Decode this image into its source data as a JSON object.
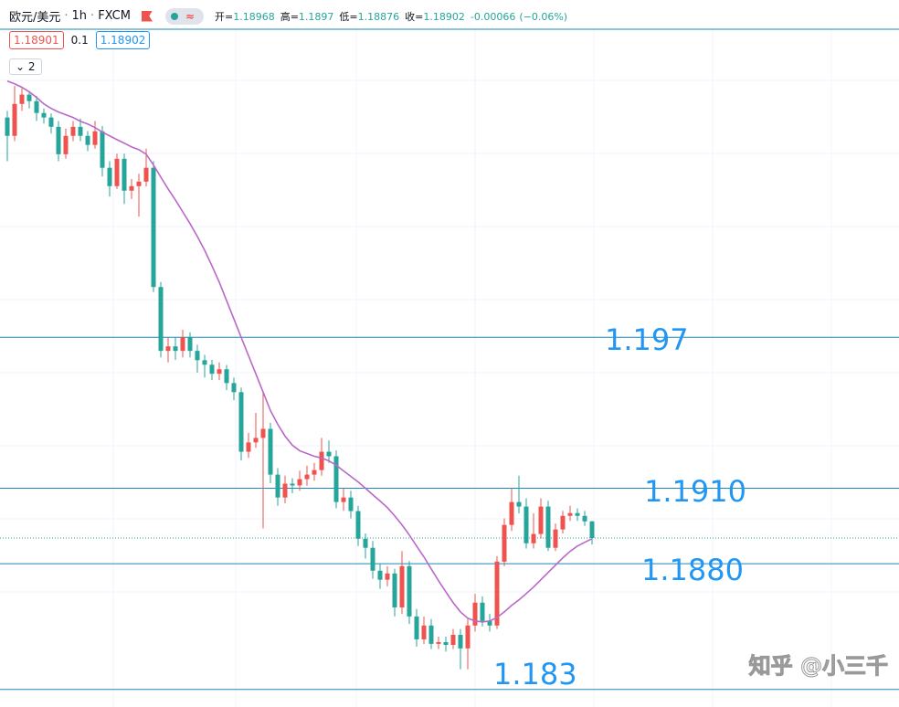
{
  "chart_data": {
    "type": "candlestick",
    "title": "欧元/美元",
    "interval": "1h",
    "source": "FXCM",
    "legend": [
      {
        "label": "开=",
        "value": 1.18968
      },
      {
        "label": "高=",
        "value": 1.1897
      },
      {
        "label": "低=",
        "value": 1.18876
      },
      {
        "label": "收=",
        "value": 1.18902
      }
    ],
    "change": {
      "value": -0.00066,
      "percent": "(−0.06%)"
    },
    "bid": "1.18901",
    "spread": "0.1",
    "ask": "1.18902",
    "indicator_count": "2",
    "up_color": "#ef5350",
    "down_color": "#26a69a",
    "ylim": [
      1.1823,
      1.20925
    ],
    "grid": true,
    "open": [
      1.20574,
      1.20501,
      1.20628,
      1.20665,
      1.20639,
      1.20592,
      1.20574,
      1.20537,
      1.20428,
      1.20501,
      1.20537,
      1.20501,
      1.20465,
      1.20519,
      1.20374,
      1.20301,
      1.2041,
      1.20283,
      1.20301,
      1.20319,
      1.20374,
      1.199,
      1.19646,
      1.19664,
      1.19646,
      1.197,
      1.19646,
      1.19609,
      1.19591,
      1.19555,
      1.19573,
      1.19518,
      1.19482,
      1.19245,
      1.19282,
      1.193,
      1.19336,
      1.19154,
      1.19063,
      1.19118,
      1.19111,
      1.19136,
      1.19154,
      1.19172,
      1.19245,
      1.19227,
      1.19045,
      1.19063,
      1.19009,
      1.18899,
      1.18863,
      1.18772,
      1.18736,
      1.18761,
      1.18626,
      1.1879,
      1.1859,
      1.18499,
      1.18554,
      1.18481,
      1.18488,
      1.18477,
      1.18517,
      1.18463,
      1.18554,
      1.18645,
      1.18572,
      1.18554,
      1.18808,
      1.18954,
      1.19045,
      1.19027,
      1.18881,
      1.18918,
      1.19027,
      1.18863,
      1.18936,
      1.1899,
      1.19001,
      1.1899,
      1.18968
    ],
    "high": [
      1.206,
      1.207,
      1.2069,
      1.2068,
      1.2066,
      1.2061,
      1.2059,
      1.2056,
      1.2053,
      1.2056,
      1.2057,
      1.2052,
      1.2056,
      1.2054,
      1.204,
      1.2043,
      1.2043,
      1.2033,
      1.2035,
      1.2045,
      1.204,
      1.1992,
      1.197,
      1.197,
      1.1973,
      1.1972,
      1.1967,
      1.1963,
      1.1961,
      1.196,
      1.1959,
      1.1954,
      1.195,
      1.1932,
      1.194,
      1.1948,
      1.1936,
      1.1918,
      1.1915,
      1.1914,
      1.1917,
      1.1919,
      1.192,
      1.193,
      1.1929,
      1.1925,
      1.191,
      1.1909,
      1.1903,
      1.1892,
      1.1889,
      1.188,
      1.1879,
      1.1878,
      1.1885,
      1.1881,
      1.1862,
      1.1859,
      1.1858,
      1.1851,
      1.1851,
      1.1854,
      1.1854,
      1.1858,
      1.1868,
      1.1867,
      1.186,
      1.1883,
      1.1898,
      1.191,
      1.1915,
      1.1906,
      1.19,
      1.1906,
      1.1905,
      1.1896,
      1.1901,
      1.1903,
      1.1902,
      1.1901,
      1.1897
    ],
    "low": [
      1.204,
      1.2048,
      1.206,
      1.2061,
      1.2056,
      1.2055,
      1.2051,
      1.204,
      1.2041,
      1.2048,
      1.2048,
      1.2044,
      1.2045,
      1.2034,
      1.2026,
      1.2029,
      1.2023,
      1.2025,
      1.2018,
      1.203,
      1.1988,
      1.1962,
      1.196,
      1.1961,
      1.1962,
      1.1962,
      1.1956,
      1.1954,
      1.1953,
      1.1953,
      1.1949,
      1.1945,
      1.1921,
      1.1922,
      1.1926,
      1.1894,
      1.1912,
      1.1903,
      1.1904,
      1.1908,
      1.1909,
      1.1911,
      1.1913,
      1.1915,
      1.192,
      1.1902,
      1.1901,
      1.1898,
      1.1887,
      1.1882,
      1.1874,
      1.187,
      1.1871,
      1.1859,
      1.186,
      1.1856,
      1.1847,
      1.1848,
      1.1846,
      1.1846,
      1.1845,
      1.1846,
      1.1838,
      1.1838,
      1.1853,
      1.1855,
      1.1853,
      1.1854,
      1.1879,
      1.1893,
      1.19,
      1.1886,
      1.1886,
      1.189,
      1.1885,
      1.1885,
      1.1892,
      1.1897,
      1.1897,
      1.1895,
      1.18876
    ],
    "close": [
      1.20501,
      1.20628,
      1.20665,
      1.20639,
      1.20592,
      1.20574,
      1.20537,
      1.20428,
      1.20501,
      1.20537,
      1.20501,
      1.20465,
      1.20519,
      1.20374,
      1.20301,
      1.2041,
      1.20283,
      1.20301,
      1.20319,
      1.20374,
      1.199,
      1.19646,
      1.19664,
      1.19646,
      1.197,
      1.19646,
      1.19609,
      1.19591,
      1.19555,
      1.19573,
      1.19518,
      1.19482,
      1.19245,
      1.19282,
      1.193,
      1.19336,
      1.19154,
      1.19063,
      1.19118,
      1.19111,
      1.19136,
      1.19154,
      1.19172,
      1.19245,
      1.19227,
      1.19045,
      1.19063,
      1.19009,
      1.18899,
      1.18863,
      1.18772,
      1.18736,
      1.18761,
      1.18626,
      1.1879,
      1.1859,
      1.18499,
      1.18554,
      1.18481,
      1.18488,
      1.18477,
      1.18517,
      1.18463,
      1.18554,
      1.18645,
      1.18572,
      1.18554,
      1.18808,
      1.18954,
      1.19045,
      1.19027,
      1.18881,
      1.18918,
      1.19027,
      1.18863,
      1.18936,
      1.1899,
      1.19001,
      1.1899,
      1.18968,
      1.18902
    ],
    "ma": {
      "color": "#ba68c8",
      "values": [
        1.20719,
        1.20708,
        1.20694,
        1.20676,
        1.20654,
        1.20628,
        1.2061,
        1.20596,
        1.20585,
        1.20574,
        1.20559,
        1.20548,
        1.20534,
        1.20516,
        1.20501,
        1.20486,
        1.20472,
        1.20457,
        1.20446,
        1.20428,
        1.20385,
        1.20337,
        1.2029,
        1.20246,
        1.20199,
        1.20152,
        1.20101,
        1.20046,
        1.19984,
        1.19919,
        1.19846,
        1.19773,
        1.197,
        1.19627,
        1.19555,
        1.19482,
        1.19409,
        1.19354,
        1.19307,
        1.19271,
        1.19249,
        1.19238,
        1.19227,
        1.1922,
        1.19209,
        1.19191,
        1.19169,
        1.19147,
        1.19125,
        1.191,
        1.19074,
        1.19049,
        1.19023,
        1.1899,
        1.18954,
        1.18914,
        1.1887,
        1.18827,
        1.18779,
        1.18732,
        1.18688,
        1.18645,
        1.18608,
        1.18583,
        1.18572,
        1.18568,
        1.18572,
        1.18586,
        1.18608,
        1.18634,
        1.18656,
        1.18681,
        1.18707,
        1.18736,
        1.18765,
        1.18794,
        1.18823,
        1.18849,
        1.1887,
        1.18885,
        1.18899
      ]
    },
    "level_color": "#1e88b4",
    "levels": [
      1.197,
      {
        "value": 1.191,
        "label": "1.1910"
      },
      {
        "value": 1.188,
        "label": "1.1880"
      },
      1.183
    ],
    "watermark": "知乎 @小三千"
  }
}
